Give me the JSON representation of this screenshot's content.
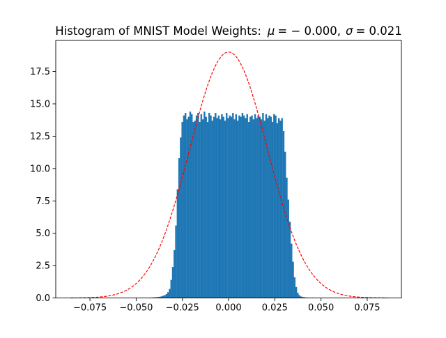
{
  "chart_data": {
    "type": "bar",
    "title": "Histogram of MNIST Model Weights: μ = −0.000, σ = 0.021",
    "title_parts": {
      "prefix": "Histogram of MNIST Model Weights",
      "colon": ":",
      "mu_symbol": "μ",
      "mu_value": "= − 0.000,",
      "sigma_symbol": "σ",
      "sigma_value": "= 0.021"
    },
    "xlabel": "",
    "ylabel": "",
    "xlim": [
      -0.0935,
      0.0935
    ],
    "ylim": [
      0,
      19.9
    ],
    "xticks": [
      -0.075,
      -0.05,
      -0.025,
      0.0,
      0.025,
      0.05,
      0.075
    ],
    "xtick_labels": [
      "−0.075",
      "−0.050",
      "−0.025",
      "0.000",
      "0.025",
      "0.050",
      "0.075"
    ],
    "yticks": [
      0.0,
      2.5,
      5.0,
      7.5,
      10.0,
      12.5,
      15.0,
      17.5
    ],
    "ytick_labels": [
      "0.0",
      "2.5",
      "5.0",
      "7.5",
      "10.0",
      "12.5",
      "15.0",
      "17.5"
    ],
    "bin_range": [
      -0.0854,
      0.0858
    ],
    "bin_count": 200,
    "bin_values": [
      0,
      0,
      0,
      0,
      0,
      0,
      0,
      0,
      0,
      0,
      0,
      0,
      0,
      0,
      0,
      0,
      0,
      0,
      0,
      0,
      0,
      0,
      0,
      0,
      0,
      0,
      0,
      0,
      0,
      0,
      0,
      0,
      0,
      0,
      0,
      0,
      0,
      0,
      0,
      0,
      0,
      0.02,
      0,
      0,
      0,
      0.02,
      0,
      0.02,
      0,
      0.02,
      0.03,
      0.03,
      0.05,
      0.05,
      0.07,
      0.08,
      0.1,
      0.13,
      0.18,
      0.22,
      0.3,
      0.45,
      0.7,
      1.4,
      2.4,
      3.7,
      5.6,
      8.4,
      10.8,
      12.4,
      13.6,
      14.1,
      14.3,
      13.8,
      14.0,
      14.4,
      14.2,
      13.6,
      13.7,
      14.1,
      14.3,
      13.6,
      14.2,
      13.8,
      14.4,
      14.0,
      13.6,
      14.3,
      14.1,
      13.7,
      14.0,
      14.3,
      13.9,
      14.1,
      13.8,
      14.2,
      14.0,
      13.7,
      14.3,
      13.9,
      14.1,
      14.0,
      14.3,
      13.8,
      14.2,
      13.7,
      14.1,
      14.0,
      14.3,
      14.1,
      13.9,
      14.2,
      13.6,
      14.0,
      14.1,
      13.8,
      14.2,
      13.9,
      14.1,
      14.0,
      13.8,
      14.3,
      13.7,
      14.2,
      13.9,
      14.1,
      14.0,
      13.6,
      14.2,
      14.1,
      13.5,
      13.9,
      13.7,
      13.9,
      12.9,
      11.3,
      9.3,
      7.6,
      5.9,
      4.2,
      2.8,
      1.6,
      0.85,
      0.4,
      0.22,
      0.12,
      0.08,
      0.06,
      0.04,
      0.03,
      0.03,
      0.02,
      0.02,
      0.02,
      0.01,
      0.01,
      0,
      0.01,
      0,
      0,
      0.01,
      0,
      0,
      0,
      0,
      0,
      0,
      0,
      0,
      0,
      0,
      0,
      0,
      0,
      0,
      0,
      0,
      0,
      0,
      0,
      0,
      0,
      0,
      0,
      0,
      0,
      0,
      0,
      0,
      0,
      0,
      0,
      0,
      0,
      0,
      0,
      0,
      0,
      0,
      0,
      0,
      0,
      0,
      0,
      0
    ],
    "bar_color": "#1f77b4",
    "series": [
      {
        "kind": "histogram"
      },
      {
        "kind": "normal-pdf",
        "mu": 0.0,
        "sigma": 0.021,
        "x_range": [
          -0.0854,
          0.0858
        ],
        "peak": 19.0,
        "color": "#ff0000",
        "style": "dashed"
      }
    ],
    "grid": false,
    "legend": "none"
  }
}
